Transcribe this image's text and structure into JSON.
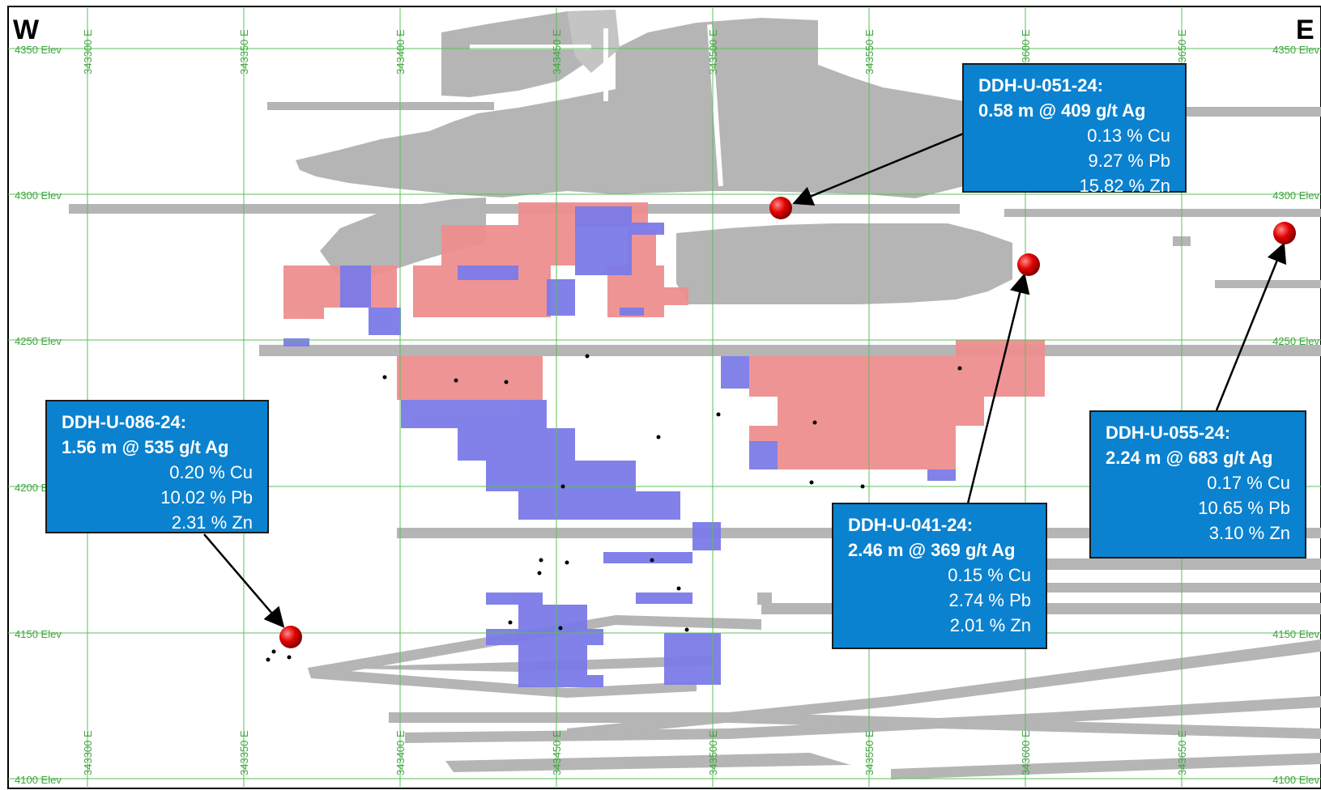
{
  "directions": {
    "west": "W",
    "east": "E"
  },
  "elevation_labels": [
    "4350 Elev",
    "4300 Elev",
    "4250 Elev",
    "4200 Elev",
    "4150 Elev",
    "4100 Elev"
  ],
  "easting_labels": [
    "343300 E",
    "343350 E",
    "343400 E",
    "343450 E",
    "343500 E",
    "343550 E",
    "343600 E",
    "343650 E"
  ],
  "colors": {
    "grid": "#5cbf5c",
    "grid_label": "#3fa53f",
    "workings": "#b3b3b3",
    "high_grade": "#ea8f8f",
    "low_grade": "#7a7ae6",
    "intercept": "#e00000",
    "callout": "#0b82cf"
  },
  "callouts": [
    {
      "hole": "DDH-U-051-24:",
      "interval": "0.58 m @  409 g/t Ag",
      "cu": "0.13 % Cu",
      "pb": "9.27 % Pb",
      "zn": "15.82 % Zn"
    },
    {
      "hole": "DDH-U-086-24:",
      "interval": "1.56 m @ 535 g/t Ag",
      "cu": "0.20 % Cu",
      "pb": "10.02 % Pb",
      "zn": "2.31 % Zn"
    },
    {
      "hole": "DDH-U-041-24:",
      "interval": "2.46 m @ 369 g/t Ag",
      "cu": "0.15 % Cu",
      "pb": "2.74 % Pb",
      "zn": "2.01 % Zn"
    },
    {
      "hole": "DDH-U-055-24:",
      "interval": "2.24 m @ 683 g/t Ag",
      "cu": "0.17 % Cu",
      "pb": "10.65 % Pb",
      "zn": "3.10 % Zn"
    }
  ]
}
